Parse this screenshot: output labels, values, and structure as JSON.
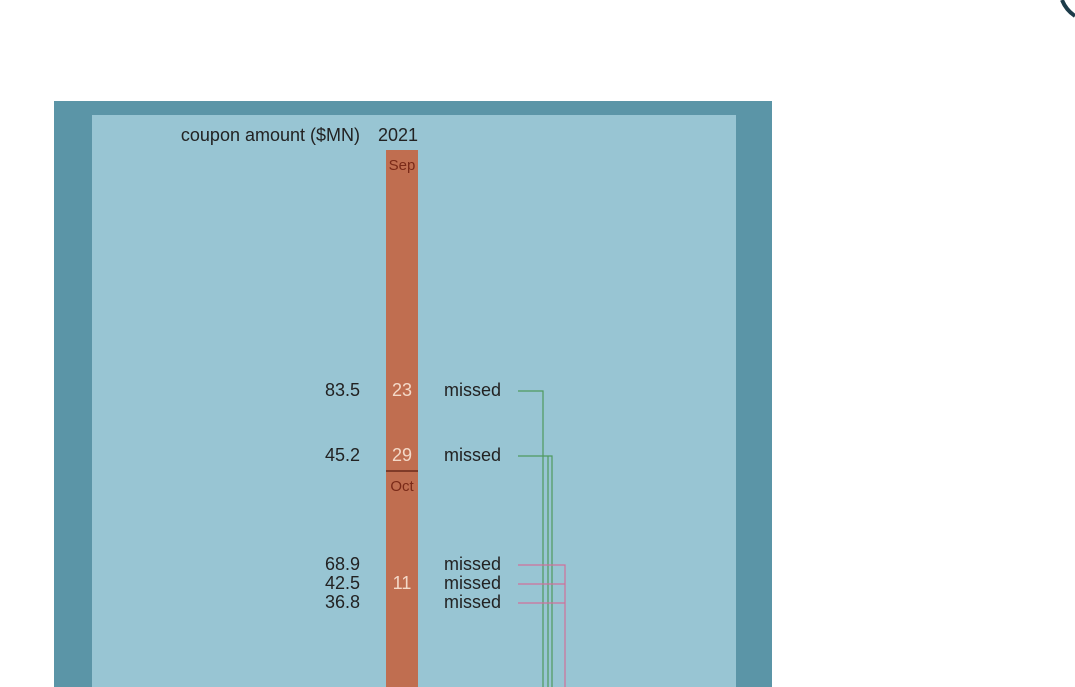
{
  "header": {
    "amount_label": "coupon amount ($MN)",
    "year": "2021"
  },
  "months": [
    "Sep",
    "Oct"
  ],
  "groups": [
    {
      "day": 23,
      "payments": [
        {
          "amount": 83.5,
          "status": "missed"
        }
      ]
    },
    {
      "day": 29,
      "payments": [
        {
          "amount": 45.2,
          "status": "missed"
        }
      ]
    },
    {
      "day": 11,
      "payments": [
        {
          "amount": 68.9,
          "status": "missed"
        },
        {
          "amount": 42.5,
          "status": "missed"
        },
        {
          "amount": 36.8,
          "status": "missed"
        }
      ]
    }
  ]
}
